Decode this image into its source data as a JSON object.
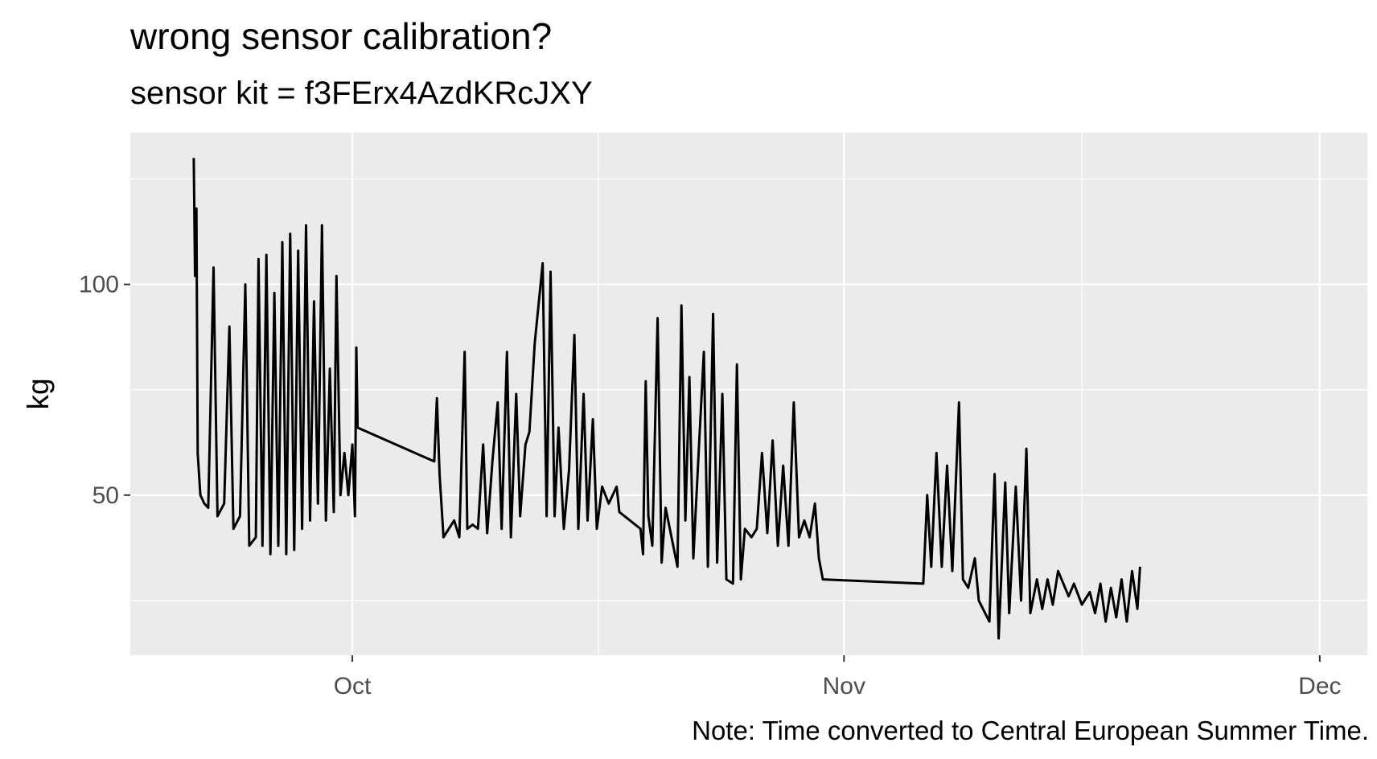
{
  "chart_data": {
    "type": "line",
    "title": "wrong sensor calibration?",
    "subtitle": "sensor kit = f3FErx4AzdKRcJXY",
    "caption": "Note: Time converted to Central European Summer Time.",
    "xlabel": "",
    "ylabel": "kg",
    "x_ticks": [
      {
        "date": "2020-10-01",
        "label": "Oct"
      },
      {
        "date": "2020-11-01",
        "label": "Nov"
      },
      {
        "date": "2020-12-01",
        "label": "Dec"
      }
    ],
    "y_ticks": [
      50,
      100
    ],
    "xlim": [
      "2020-09-17",
      "2020-12-04"
    ],
    "ylim": [
      12,
      136
    ],
    "grid": true,
    "colors": {
      "line": "#000000",
      "panel": "#ebebeb",
      "grid": "#ffffff"
    },
    "series": [
      {
        "values": [
          [
            "2020-09-21T00:00",
            130
          ],
          [
            "2020-09-21T02:00",
            102
          ],
          [
            "2020-09-21T04:00",
            118
          ],
          [
            "2020-09-21T06:00",
            60
          ],
          [
            "2020-09-21T10:00",
            50
          ],
          [
            "2020-09-21T16:00",
            48
          ],
          [
            "2020-09-21T22:00",
            47
          ],
          [
            "2020-09-22T06:00",
            104
          ],
          [
            "2020-09-22T12:00",
            45
          ],
          [
            "2020-09-22T22:00",
            48
          ],
          [
            "2020-09-23T06:00",
            90
          ],
          [
            "2020-09-23T12:00",
            42
          ],
          [
            "2020-09-23T22:00",
            45
          ],
          [
            "2020-09-24T06:00",
            100
          ],
          [
            "2020-09-24T12:00",
            38
          ],
          [
            "2020-09-24T22:00",
            40
          ],
          [
            "2020-09-25T02:00",
            106
          ],
          [
            "2020-09-25T08:00",
            38
          ],
          [
            "2020-09-25T14:00",
            107
          ],
          [
            "2020-09-25T20:00",
            36
          ],
          [
            "2020-09-26T02:00",
            98
          ],
          [
            "2020-09-26T08:00",
            38
          ],
          [
            "2020-09-26T14:00",
            110
          ],
          [
            "2020-09-26T20:00",
            36
          ],
          [
            "2020-09-27T02:00",
            112
          ],
          [
            "2020-09-27T08:00",
            37
          ],
          [
            "2020-09-27T14:00",
            108
          ],
          [
            "2020-09-27T20:00",
            42
          ],
          [
            "2020-09-28T02:00",
            114
          ],
          [
            "2020-09-28T08:00",
            44
          ],
          [
            "2020-09-28T14:00",
            96
          ],
          [
            "2020-09-28T20:00",
            48
          ],
          [
            "2020-09-29T02:00",
            114
          ],
          [
            "2020-09-29T08:00",
            44
          ],
          [
            "2020-09-29T14:00",
            80
          ],
          [
            "2020-09-29T20:00",
            46
          ],
          [
            "2020-09-30T00:00",
            102
          ],
          [
            "2020-09-30T06:00",
            50
          ],
          [
            "2020-09-30T12:00",
            60
          ],
          [
            "2020-09-30T18:00",
            50
          ],
          [
            "2020-10-01T00:00",
            62
          ],
          [
            "2020-10-01T04:00",
            45
          ],
          [
            "2020-10-01T06:00",
            85
          ],
          [
            "2020-10-01T08:00",
            66
          ],
          [
            "2020-10-06T04:00",
            58
          ],
          [
            "2020-10-06T08:00",
            73
          ],
          [
            "2020-10-06T12:00",
            55
          ],
          [
            "2020-10-06T18:00",
            40
          ],
          [
            "2020-10-07T02:00",
            42
          ],
          [
            "2020-10-07T10:00",
            44
          ],
          [
            "2020-10-07T18:00",
            40
          ],
          [
            "2020-10-08T02:00",
            84
          ],
          [
            "2020-10-08T06:00",
            42
          ],
          [
            "2020-10-08T14:00",
            43
          ],
          [
            "2020-10-08T22:00",
            42
          ],
          [
            "2020-10-09T06:00",
            62
          ],
          [
            "2020-10-09T12:00",
            41
          ],
          [
            "2020-10-09T20:00",
            58
          ],
          [
            "2020-10-10T04:00",
            72
          ],
          [
            "2020-10-10T10:00",
            42
          ],
          [
            "2020-10-10T18:00",
            84
          ],
          [
            "2020-10-11T00:00",
            40
          ],
          [
            "2020-10-11T08:00",
            74
          ],
          [
            "2020-10-11T14:00",
            45
          ],
          [
            "2020-10-11T22:00",
            62
          ],
          [
            "2020-10-12T04:00",
            65
          ],
          [
            "2020-10-12T12:00",
            86
          ],
          [
            "2020-10-13T00:00",
            105
          ],
          [
            "2020-10-13T06:00",
            45
          ],
          [
            "2020-10-13T12:00",
            103
          ],
          [
            "2020-10-13T18:00",
            45
          ],
          [
            "2020-10-14T00:00",
            66
          ],
          [
            "2020-10-14T08:00",
            42
          ],
          [
            "2020-10-14T16:00",
            56
          ],
          [
            "2020-10-15T00:00",
            88
          ],
          [
            "2020-10-15T06:00",
            42
          ],
          [
            "2020-10-15T14:00",
            74
          ],
          [
            "2020-10-15T20:00",
            44
          ],
          [
            "2020-10-16T04:00",
            68
          ],
          [
            "2020-10-16T10:00",
            42
          ],
          [
            "2020-10-16T18:00",
            52
          ],
          [
            "2020-10-17T04:00",
            48
          ],
          [
            "2020-10-17T16:00",
            52
          ],
          [
            "2020-10-17T20:00",
            46
          ],
          [
            "2020-10-19T04:00",
            42
          ],
          [
            "2020-10-19T08:00",
            36
          ],
          [
            "2020-10-19T12:00",
            77
          ],
          [
            "2020-10-19T16:00",
            45
          ],
          [
            "2020-10-19T22:00",
            38
          ],
          [
            "2020-10-20T06:00",
            92
          ],
          [
            "2020-10-20T12:00",
            34
          ],
          [
            "2020-10-20T18:00",
            47
          ],
          [
            "2020-10-21T12:00",
            33
          ],
          [
            "2020-10-21T18:00",
            95
          ],
          [
            "2020-10-22T00:00",
            44
          ],
          [
            "2020-10-22T06:00",
            78
          ],
          [
            "2020-10-22T12:00",
            35
          ],
          [
            "2020-10-22T20:00",
            60
          ],
          [
            "2020-10-23T04:00",
            84
          ],
          [
            "2020-10-23T10:00",
            33
          ],
          [
            "2020-10-23T18:00",
            93
          ],
          [
            "2020-10-24T00:00",
            34
          ],
          [
            "2020-10-24T08:00",
            74
          ],
          [
            "2020-10-24T14:00",
            30
          ],
          [
            "2020-10-25T00:00",
            29
          ],
          [
            "2020-10-25T06:00",
            81
          ],
          [
            "2020-10-25T12:00",
            30
          ],
          [
            "2020-10-25T18:00",
            42
          ],
          [
            "2020-10-26T04:00",
            40
          ],
          [
            "2020-10-26T12:00",
            42
          ],
          [
            "2020-10-26T20:00",
            60
          ],
          [
            "2020-10-27T04:00",
            41
          ],
          [
            "2020-10-27T12:00",
            63
          ],
          [
            "2020-10-27T20:00",
            38
          ],
          [
            "2020-10-28T04:00",
            57
          ],
          [
            "2020-10-28T12:00",
            38
          ],
          [
            "2020-10-28T20:00",
            72
          ],
          [
            "2020-10-29T04:00",
            40
          ],
          [
            "2020-10-29T12:00",
            44
          ],
          [
            "2020-10-29T20:00",
            40
          ],
          [
            "2020-10-30T04:00",
            48
          ],
          [
            "2020-10-30T10:00",
            35
          ],
          [
            "2020-10-30T16:00",
            30
          ],
          [
            "2020-11-06T00:00",
            29
          ],
          [
            "2020-11-06T06:00",
            50
          ],
          [
            "2020-11-06T12:00",
            33
          ],
          [
            "2020-11-06T20:00",
            60
          ],
          [
            "2020-11-07T04:00",
            33
          ],
          [
            "2020-11-07T12:00",
            57
          ],
          [
            "2020-11-07T20:00",
            32
          ],
          [
            "2020-11-08T06:00",
            72
          ],
          [
            "2020-11-08T12:00",
            30
          ],
          [
            "2020-11-08T20:00",
            28
          ],
          [
            "2020-11-09T06:00",
            35
          ],
          [
            "2020-11-09T12:00",
            25
          ],
          [
            "2020-11-10T04:00",
            20
          ],
          [
            "2020-11-10T12:00",
            55
          ],
          [
            "2020-11-10T18:00",
            16
          ],
          [
            "2020-11-11T04:00",
            53
          ],
          [
            "2020-11-11T10:00",
            22
          ],
          [
            "2020-11-11T20:00",
            52
          ],
          [
            "2020-11-12T04:00",
            25
          ],
          [
            "2020-11-12T12:00",
            61
          ],
          [
            "2020-11-12T18:00",
            22
          ],
          [
            "2020-11-13T04:00",
            30
          ],
          [
            "2020-11-13T12:00",
            23
          ],
          [
            "2020-11-13T20:00",
            30
          ],
          [
            "2020-11-14T04:00",
            24
          ],
          [
            "2020-11-14T12:00",
            32
          ],
          [
            "2020-11-15T04:00",
            26
          ],
          [
            "2020-11-15T12:00",
            29
          ],
          [
            "2020-11-16T00:00",
            24
          ],
          [
            "2020-11-16T12:00",
            27
          ],
          [
            "2020-11-16T20:00",
            22
          ],
          [
            "2020-11-17T04:00",
            29
          ],
          [
            "2020-11-17T12:00",
            20
          ],
          [
            "2020-11-17T20:00",
            28
          ],
          [
            "2020-11-18T04:00",
            21
          ],
          [
            "2020-11-18T12:00",
            30
          ],
          [
            "2020-11-18T20:00",
            20
          ],
          [
            "2020-11-19T04:00",
            32
          ],
          [
            "2020-11-19T12:00",
            23
          ],
          [
            "2020-11-19T16:00",
            33
          ]
        ]
      }
    ]
  }
}
